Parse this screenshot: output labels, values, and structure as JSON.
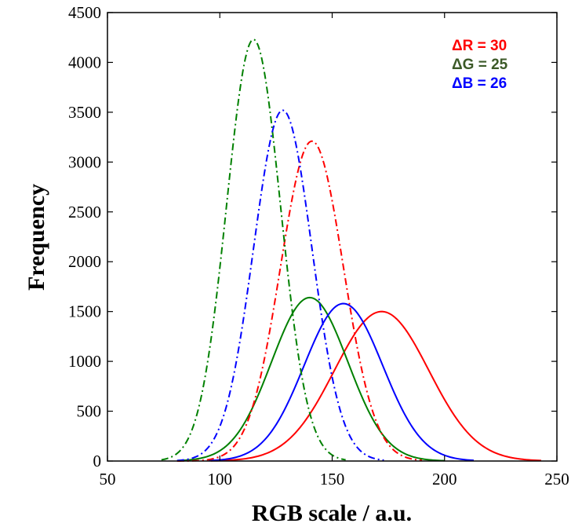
{
  "chart_data": {
    "type": "line",
    "title": "",
    "xlabel": "RGB scale / a.u.",
    "ylabel": "Frequency",
    "xlim": [
      50,
      250
    ],
    "ylim": [
      0,
      4500
    ],
    "xticks": [
      50,
      100,
      150,
      200,
      250
    ],
    "yticks": [
      0,
      500,
      1000,
      1500,
      2000,
      2500,
      3000,
      3500,
      4000,
      4500
    ],
    "grid": false,
    "annotations": [
      {
        "text": "ΔR = 30",
        "color": "#ff0000"
      },
      {
        "text": "ΔG = 25",
        "color": "#3c5a28"
      },
      {
        "text": "ΔB = 26",
        "color": "#0000ff"
      }
    ],
    "series": [
      {
        "color": "#ff0000",
        "style": "solid",
        "mean": 172,
        "sd": 21,
        "peak": 1500,
        "x_range": [
          96,
          243
        ]
      },
      {
        "color": "#008000",
        "style": "solid",
        "mean": 140,
        "sd": 17,
        "peak": 1640,
        "x_range": [
          81,
          200
        ]
      },
      {
        "color": "#0000ff",
        "style": "solid",
        "mean": 155,
        "sd": 17.5,
        "peak": 1580,
        "x_range": [
          95,
          213
        ]
      },
      {
        "color": "#ff0000",
        "style": "dashdot",
        "mean": 141,
        "sd": 14,
        "peak": 3210,
        "x_range": [
          81,
          190
        ]
      },
      {
        "color": "#008000",
        "style": "dashdot",
        "mean": 115,
        "sd": 12,
        "peak": 4230,
        "x_range": [
          74,
          156
        ]
      },
      {
        "color": "#0000ff",
        "style": "dashdot",
        "mean": 128,
        "sd": 13,
        "peak": 3520,
        "x_range": [
          81,
          173
        ]
      }
    ]
  }
}
